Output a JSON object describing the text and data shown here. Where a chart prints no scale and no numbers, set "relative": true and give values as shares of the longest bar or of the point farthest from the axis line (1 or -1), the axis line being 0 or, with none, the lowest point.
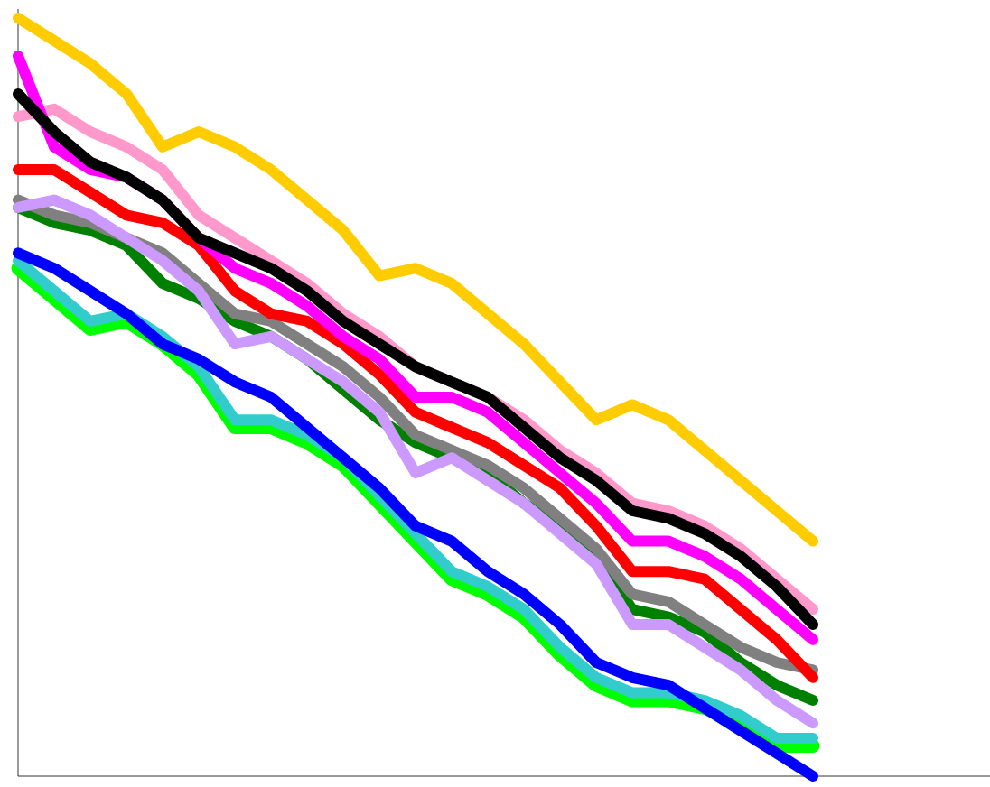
{
  "chart_data": {
    "type": "line",
    "relative": true,
    "categories": [
      null,
      null,
      null,
      null,
      null,
      null,
      null,
      null,
      null,
      null,
      null,
      null,
      null,
      null,
      null,
      null,
      null,
      null,
      null,
      null,
      null,
      null,
      null
    ],
    "series": [
      {
        "color": "#00ff00",
        "values": [
          0.67,
          0.63,
          0.59,
          0.6,
          0.57,
          0.53,
          0.46,
          0.46,
          0.44,
          0.41,
          0.36,
          0.31,
          0.26,
          0.24,
          0.21,
          0.16,
          0.12,
          0.1,
          0.1,
          0.09,
          0.07,
          0.04,
          0.04
        ]
      },
      {
        "color": "#33cccc",
        "values": [
          0.68,
          0.64,
          0.6,
          0.61,
          0.58,
          0.54,
          0.47,
          0.47,
          0.45,
          0.42,
          0.37,
          0.32,
          0.27,
          0.25,
          0.22,
          0.17,
          0.13,
          0.11,
          0.11,
          0.1,
          0.08,
          0.05,
          0.05
        ]
      },
      {
        "color": "#0000ff",
        "values": [
          0.69,
          0.67,
          0.64,
          0.61,
          0.57,
          0.55,
          0.52,
          0.5,
          0.46,
          0.42,
          0.38,
          0.33,
          0.31,
          0.27,
          0.24,
          0.2,
          0.15,
          0.13,
          0.12,
          0.09,
          0.06,
          0.03,
          0.0
        ]
      },
      {
        "color": "#008000",
        "values": [
          0.75,
          0.73,
          0.72,
          0.7,
          0.65,
          0.63,
          0.6,
          0.58,
          0.55,
          0.51,
          0.47,
          0.44,
          0.42,
          0.4,
          0.36,
          0.33,
          0.29,
          0.22,
          0.21,
          0.19,
          0.15,
          0.12,
          0.1
        ]
      },
      {
        "color": "#808080",
        "values": [
          0.76,
          0.74,
          0.73,
          0.71,
          0.69,
          0.65,
          0.61,
          0.6,
          0.57,
          0.54,
          0.5,
          0.45,
          0.43,
          0.41,
          0.38,
          0.34,
          0.3,
          0.24,
          0.23,
          0.2,
          0.17,
          0.15,
          0.14
        ]
      },
      {
        "color": "#cc99ff",
        "values": [
          0.75,
          0.76,
          0.74,
          0.71,
          0.68,
          0.64,
          0.57,
          0.58,
          0.55,
          0.52,
          0.48,
          0.4,
          0.42,
          0.39,
          0.36,
          0.32,
          0.28,
          0.2,
          0.2,
          0.17,
          0.14,
          0.1,
          0.07
        ]
      },
      {
        "color": "#ff0000",
        "values": [
          0.8,
          0.8,
          0.77,
          0.74,
          0.73,
          0.7,
          0.64,
          0.61,
          0.6,
          0.57,
          0.53,
          0.48,
          0.46,
          0.44,
          0.41,
          0.38,
          0.33,
          0.27,
          0.27,
          0.26,
          0.22,
          0.18,
          0.13
        ]
      },
      {
        "color": "#ff99cc",
        "values": [
          0.87,
          0.88,
          0.85,
          0.83,
          0.8,
          0.74,
          0.71,
          0.68,
          0.65,
          0.61,
          0.58,
          0.54,
          0.52,
          0.5,
          0.47,
          0.43,
          0.4,
          0.36,
          0.35,
          0.33,
          0.3,
          0.26,
          0.22
        ]
      },
      {
        "color": "#ff00ff",
        "values": [
          0.95,
          0.83,
          0.8,
          0.79,
          0.76,
          0.71,
          0.67,
          0.65,
          0.62,
          0.58,
          0.55,
          0.5,
          0.5,
          0.48,
          0.44,
          0.4,
          0.36,
          0.31,
          0.31,
          0.29,
          0.26,
          0.22,
          0.18
        ]
      },
      {
        "color": "#000000",
        "values": [
          0.9,
          0.85,
          0.81,
          0.79,
          0.76,
          0.71,
          0.69,
          0.67,
          0.64,
          0.6,
          0.57,
          0.54,
          0.52,
          0.5,
          0.46,
          0.42,
          0.39,
          0.35,
          0.34,
          0.32,
          0.29,
          0.25,
          0.2
        ]
      },
      {
        "color": "#ffcc00",
        "values": [
          1.0,
          0.97,
          0.94,
          0.9,
          0.83,
          0.85,
          0.83,
          0.8,
          0.76,
          0.72,
          0.66,
          0.67,
          0.65,
          0.61,
          0.57,
          0.52,
          0.47,
          0.49,
          0.47,
          0.43,
          0.39,
          0.35,
          0.31
        ]
      }
    ]
  }
}
